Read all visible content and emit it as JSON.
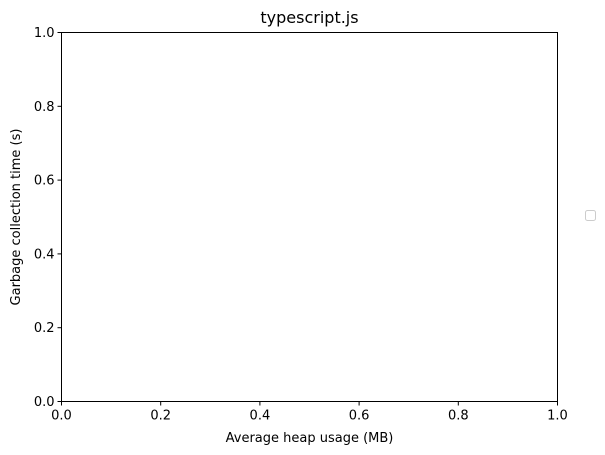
{
  "chart_data": {
    "type": "scatter",
    "title": "typescript.js",
    "xlabel": "Average heap usage (MB)",
    "ylabel": "Garbage collection time (s)",
    "xlim": [
      0.0,
      1.0
    ],
    "ylim": [
      0.0,
      1.0
    ],
    "x_ticks": [
      "0.0",
      "0.2",
      "0.4",
      "0.6",
      "0.8",
      "1.0"
    ],
    "y_ticks": [
      "0.0",
      "0.2",
      "0.4",
      "0.6",
      "0.8",
      "1.0"
    ],
    "series": [],
    "grid": false,
    "legend": "right-outside-center",
    "legend_entries": []
  },
  "colors": {
    "axes": "#000000",
    "background": "#ffffff",
    "legend_border": "#cccccc"
  }
}
